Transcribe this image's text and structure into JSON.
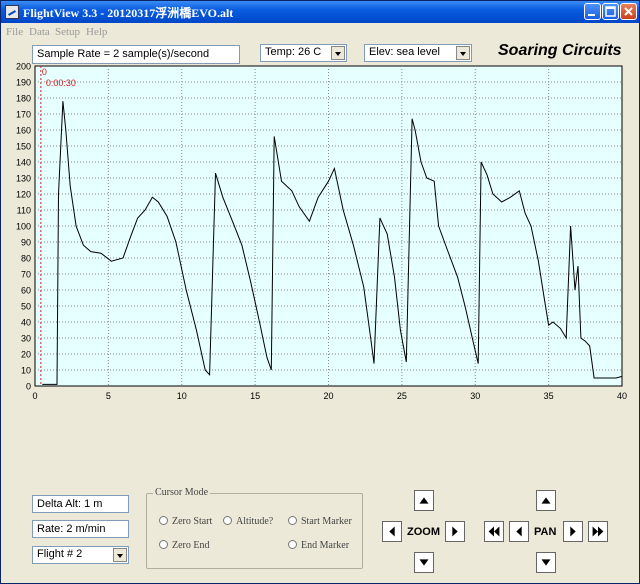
{
  "window": {
    "title": "FlightView 3.3 - 20120317浮洲橋EVO.alt",
    "controls": [
      "minimize",
      "maximize",
      "close"
    ]
  },
  "menu": [
    "File",
    "Data",
    "Setup",
    "Help"
  ],
  "toolbar": {
    "sample_rate": "Sample Rate =  2 sample(s)/second",
    "temp": "Temp:  26 C",
    "elev": "Elev: sea level",
    "brand": "Soaring Circuits"
  },
  "chart_data": {
    "type": "line",
    "title": "",
    "xlabel": "",
    "ylabel": "",
    "xlim": [
      0,
      40
    ],
    "ylim": [
      0,
      200
    ],
    "xticks": [
      0,
      5,
      10,
      15,
      20,
      25,
      30,
      35,
      40
    ],
    "yticks": [
      0,
      10,
      20,
      30,
      40,
      50,
      60,
      70,
      80,
      90,
      100,
      110,
      120,
      130,
      140,
      150,
      160,
      170,
      180,
      190,
      200
    ],
    "grid": true,
    "background": "#e6ffff",
    "line_color": "#000000",
    "cursor": {
      "x": 0.4,
      "marker_label": "0",
      "time_label": "0:00:30",
      "color": "#d02020"
    },
    "series": [
      {
        "x": [
          0.5,
          1.5,
          1.6,
          1.9,
          2.1,
          2.4,
          2.8,
          3.3,
          3.8,
          4.5,
          5.2,
          6.0,
          6.5,
          7.0,
          7.5,
          8.0,
          8.4,
          9.0,
          9.6,
          10.3,
          11.0,
          11.6,
          11.9,
          12.3,
          12.8,
          13.5,
          14.1,
          14.7,
          15.3,
          15.8,
          16.1,
          16.3,
          16.8,
          17.5,
          18.0,
          18.7,
          19.3,
          20.0,
          20.4,
          21.0,
          21.7,
          22.4,
          22.9,
          23.1,
          23.5,
          24.0,
          24.5,
          24.9,
          25.3,
          25.7,
          25.9,
          26.3,
          26.7,
          27.2,
          27.5,
          28.1,
          28.8,
          29.3,
          29.8,
          30.2,
          30.4,
          30.8,
          31.2,
          31.8,
          32.4,
          33.0,
          33.4,
          33.8,
          34.3,
          34.7,
          35.0,
          35.3,
          35.8,
          36.2,
          36.5,
          36.8,
          37.0,
          37.2,
          37.5,
          37.8,
          38.1,
          38.5,
          39.0,
          39.6,
          40.0
        ],
        "y": [
          1,
          1,
          120,
          178,
          160,
          125,
          100,
          88,
          84,
          83,
          78,
          80,
          93,
          105,
          110,
          118,
          115,
          106,
          90,
          60,
          35,
          10,
          7,
          133,
          118,
          102,
          88,
          65,
          40,
          18,
          10,
          156,
          128,
          122,
          112,
          103,
          118,
          128,
          136,
          110,
          88,
          62,
          28,
          14,
          105,
          95,
          68,
          35,
          15,
          167,
          160,
          140,
          130,
          128,
          100,
          85,
          68,
          50,
          30,
          14,
          140,
          132,
          120,
          115,
          118,
          122,
          108,
          100,
          78,
          55,
          38,
          40,
          36,
          30,
          100,
          60,
          75,
          30,
          28,
          25,
          5,
          5,
          5,
          5,
          6
        ]
      }
    ]
  },
  "bottom": {
    "delta_alt": "Delta Alt: 1 m",
    "rate": "Rate: 2 m/min",
    "flight": "Flight # 2"
  },
  "cursor_mode": {
    "title": "Cursor Mode",
    "options": [
      "Zero Start",
      "Altitude?",
      "Start Marker",
      "Zero End",
      "End Marker"
    ]
  },
  "nav": {
    "zoom_label": "ZOOM",
    "pan_label": "PAN"
  }
}
